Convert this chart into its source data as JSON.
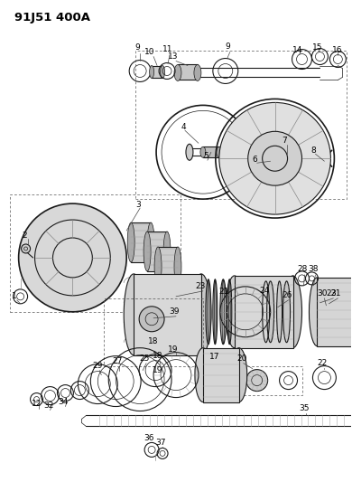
{
  "title": "91J51 400A",
  "bg_color": "#ffffff",
  "line_color": "#1a1a1a",
  "fig_width": 3.9,
  "fig_height": 5.33,
  "dpi": 100,
  "label_fontsize": 6.5,
  "title_fontsize": 9.5
}
